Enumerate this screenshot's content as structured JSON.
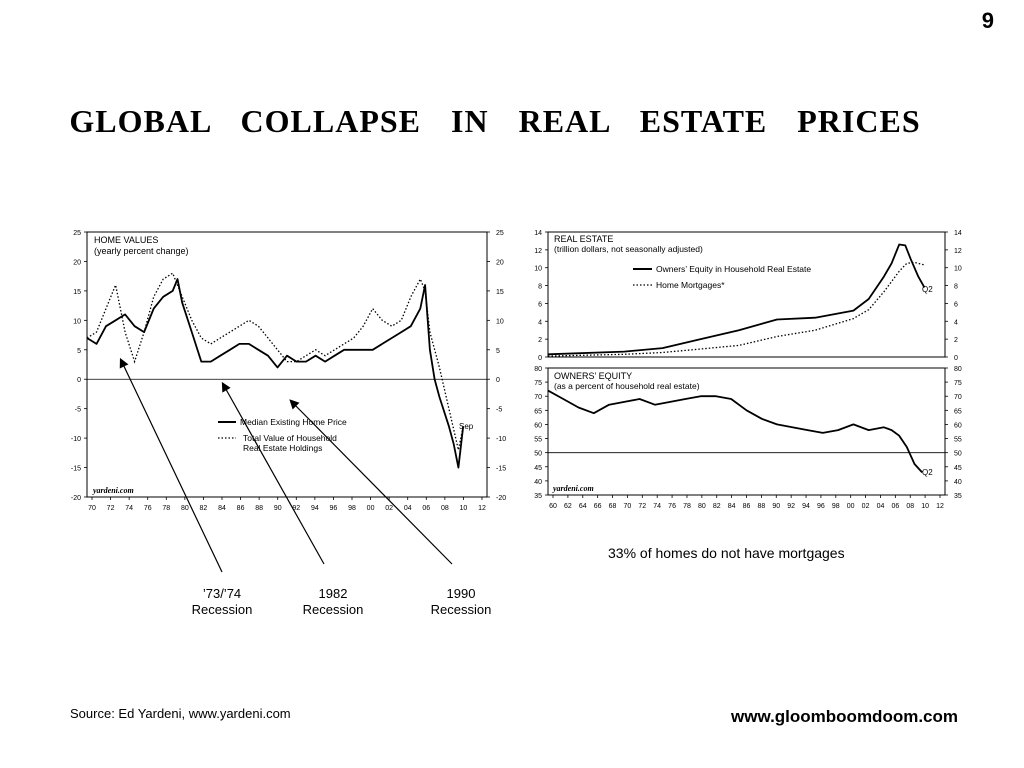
{
  "page_number": "9",
  "title": "GLOBAL  COLLAPSE  IN  REAL  ESTATE  PRICES",
  "note": "33% of homes do not have mortgages",
  "recession_labels": [
    {
      "line1": "’73/’74",
      "line2": "Recession"
    },
    {
      "line1": "1982",
      "line2": "Recession"
    },
    {
      "line1": "1990",
      "line2": "Recession"
    }
  ],
  "source": "Source: Ed Yardeni, www.yardeni.com",
  "website": "www.gloomboomdoom.com",
  "chart_data": [
    {
      "type": "line",
      "id": "home-values",
      "title": "HOME VALUES",
      "subtitle": "(yearly percent change)",
      "watermark": "yardeni.com",
      "x_ticks": [
        "70",
        "72",
        "74",
        "76",
        "78",
        "80",
        "82",
        "84",
        "86",
        "88",
        "90",
        "92",
        "94",
        "96",
        "98",
        "00",
        "02",
        "04",
        "06",
        "08",
        "10",
        "12"
      ],
      "xlim": [
        1970,
        2012
      ],
      "y_ticks": [
        "25",
        "20",
        "15",
        "10",
        "5",
        "0",
        "-5",
        "-10",
        "-15",
        "-20"
      ],
      "ylim": [
        -20,
        25
      ],
      "end_label": "Sep",
      "series": [
        {
          "name": "Median Existing Home Price",
          "style": "solid",
          "points": [
            [
              1970,
              7
            ],
            [
              1971,
              6
            ],
            [
              1972,
              9
            ],
            [
              1973,
              10
            ],
            [
              1974,
              11
            ],
            [
              1975,
              9
            ],
            [
              1976,
              8
            ],
            [
              1977,
              12
            ],
            [
              1978,
              14
            ],
            [
              1979,
              15
            ],
            [
              1979.5,
              17
            ],
            [
              1980,
              13
            ],
            [
              1981,
              8
            ],
            [
              1982,
              3
            ],
            [
              1983,
              3
            ],
            [
              1984,
              4
            ],
            [
              1985,
              5
            ],
            [
              1986,
              6
            ],
            [
              1987,
              6
            ],
            [
              1988,
              5
            ],
            [
              1989,
              4
            ],
            [
              1990,
              2
            ],
            [
              1991,
              4
            ],
            [
              1992,
              3
            ],
            [
              1993,
              3
            ],
            [
              1994,
              4
            ],
            [
              1995,
              3
            ],
            [
              1996,
              4
            ],
            [
              1997,
              5
            ],
            [
              1998,
              5
            ],
            [
              1999,
              5
            ],
            [
              2000,
              5
            ],
            [
              2001,
              6
            ],
            [
              2002,
              7
            ],
            [
              2003,
              8
            ],
            [
              2004,
              9
            ],
            [
              2005,
              12
            ],
            [
              2005.5,
              16
            ],
            [
              2006,
              5
            ],
            [
              2006.5,
              0
            ],
            [
              2007,
              -3
            ],
            [
              2008,
              -8
            ],
            [
              2008.5,
              -11
            ],
            [
              2009,
              -15
            ],
            [
              2009.5,
              -8
            ]
          ]
        },
        {
          "name": "Total Value of Household Real Estate Holdings",
          "style": "dotted",
          "points": [
            [
              1970,
              7
            ],
            [
              1971,
              8
            ],
            [
              1972,
              12
            ],
            [
              1973,
              16
            ],
            [
              1974,
              8
            ],
            [
              1975,
              3
            ],
            [
              1976,
              8
            ],
            [
              1977,
              14
            ],
            [
              1978,
              17
            ],
            [
              1979,
              18
            ],
            [
              1980,
              14
            ],
            [
              1981,
              10
            ],
            [
              1982,
              7
            ],
            [
              1983,
              6
            ],
            [
              1984,
              7
            ],
            [
              1985,
              8
            ],
            [
              1986,
              9
            ],
            [
              1987,
              10
            ],
            [
              1988,
              9
            ],
            [
              1989,
              7
            ],
            [
              1990,
              5
            ],
            [
              1991,
              3
            ],
            [
              1992,
              3
            ],
            [
              1993,
              4
            ],
            [
              1994,
              5
            ],
            [
              1995,
              4
            ],
            [
              1996,
              5
            ],
            [
              1997,
              6
            ],
            [
              1998,
              7
            ],
            [
              1999,
              9
            ],
            [
              2000,
              12
            ],
            [
              2001,
              10
            ],
            [
              2002,
              9
            ],
            [
              2003,
              10
            ],
            [
              2004,
              14
            ],
            [
              2005,
              17
            ],
            [
              2005.5,
              15
            ],
            [
              2006,
              8
            ],
            [
              2007,
              2
            ],
            [
              2008,
              -5
            ],
            [
              2009,
              -12
            ],
            [
              2009.5,
              -8
            ]
          ]
        }
      ]
    },
    {
      "type": "line",
      "id": "real-estate",
      "title": "REAL ESTATE",
      "subtitle": "(trillion dollars, not seasonally adjusted)",
      "y_ticks": [
        "14",
        "12",
        "10",
        "8",
        "6",
        "4",
        "2",
        "0"
      ],
      "ylim": [
        0,
        14
      ],
      "xlim": [
        1960,
        2012
      ],
      "end_label": "Q2",
      "series": [
        {
          "name": "Owners’ Equity in Household Real Estate",
          "style": "solid",
          "points": [
            [
              1960,
              0.3
            ],
            [
              1970,
              0.6
            ],
            [
              1975,
              1
            ],
            [
              1980,
              2
            ],
            [
              1985,
              3
            ],
            [
              1990,
              4.2
            ],
            [
              1995,
              4.4
            ],
            [
              2000,
              5.2
            ],
            [
              2002,
              6.5
            ],
            [
              2004,
              9
            ],
            [
              2005,
              10.5
            ],
            [
              2006,
              12.6
            ],
            [
              2006.8,
              12.5
            ],
            [
              2007.5,
              11
            ],
            [
              2008.5,
              9
            ],
            [
              2009.3,
              7.8
            ]
          ]
        },
        {
          "name": "Home Mortgages*",
          "style": "dotted",
          "points": [
            [
              1960,
              0.1
            ],
            [
              1970,
              0.3
            ],
            [
              1975,
              0.5
            ],
            [
              1980,
              0.9
            ],
            [
              1985,
              1.3
            ],
            [
              1990,
              2.3
            ],
            [
              1995,
              3
            ],
            [
              2000,
              4.3
            ],
            [
              2002,
              5.3
            ],
            [
              2004,
              7.3
            ],
            [
              2006,
              9.6
            ],
            [
              2007,
              10.5
            ],
            [
              2008,
              10.6
            ],
            [
              2009.3,
              10.3
            ]
          ]
        }
      ]
    },
    {
      "type": "line",
      "id": "owners-equity",
      "title": "OWNERS’ EQUITY",
      "subtitle": "(as a percent of household real estate)",
      "watermark": "yardeni.com",
      "x_ticks": [
        "60",
        "62",
        "64",
        "66",
        "68",
        "70",
        "72",
        "74",
        "76",
        "78",
        "80",
        "82",
        "84",
        "86",
        "88",
        "90",
        "92",
        "94",
        "96",
        "98",
        "00",
        "02",
        "04",
        "06",
        "08",
        "10",
        "12"
      ],
      "xlim": [
        1960,
        2012
      ],
      "y_ticks": [
        "80",
        "75",
        "70",
        "65",
        "60",
        "55",
        "50",
        "45",
        "40",
        "35"
      ],
      "ylim": [
        35,
        80
      ],
      "reference_line": 50,
      "end_label": "Q2",
      "series": [
        {
          "name": "Owners’ Equity",
          "style": "solid",
          "points": [
            [
              1960,
              72
            ],
            [
              1962,
              69
            ],
            [
              1964,
              66
            ],
            [
              1966,
              64
            ],
            [
              1968,
              67
            ],
            [
              1970,
              68
            ],
            [
              1972,
              69
            ],
            [
              1974,
              67
            ],
            [
              1976,
              68
            ],
            [
              1978,
              69
            ],
            [
              1980,
              70
            ],
            [
              1982,
              70
            ],
            [
              1984,
              69
            ],
            [
              1986,
              65
            ],
            [
              1988,
              62
            ],
            [
              1990,
              60
            ],
            [
              1992,
              59
            ],
            [
              1994,
              58
            ],
            [
              1996,
              57
            ],
            [
              1998,
              58
            ],
            [
              2000,
              60
            ],
            [
              2002,
              58
            ],
            [
              2004,
              59
            ],
            [
              2005,
              58
            ],
            [
              2006,
              56
            ],
            [
              2007,
              52
            ],
            [
              2008,
              46
            ],
            [
              2009,
              43
            ]
          ]
        }
      ]
    }
  ]
}
